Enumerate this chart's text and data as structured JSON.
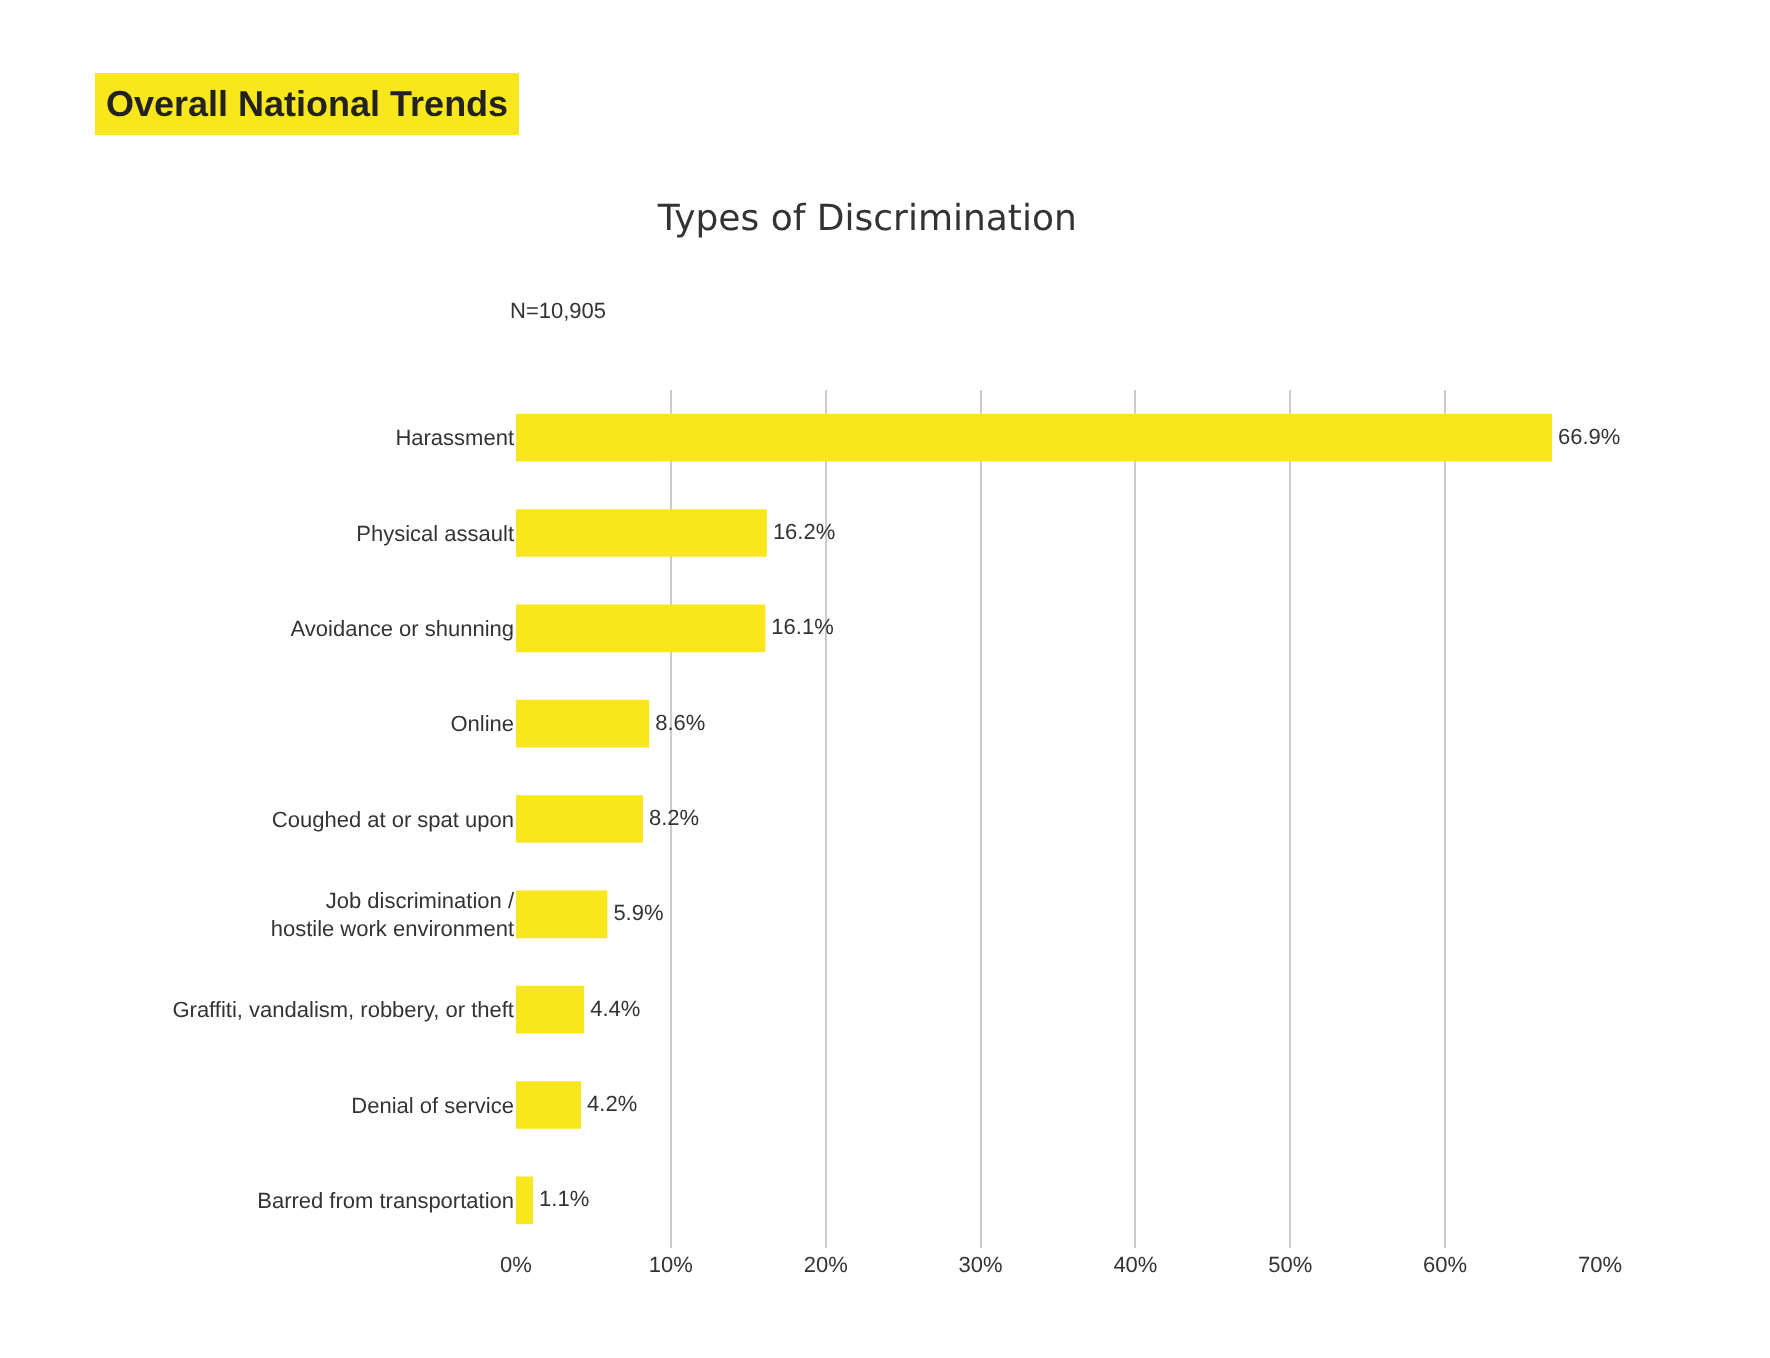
{
  "chart_data": {
    "type": "bar",
    "orientation": "horizontal",
    "title": "Types of Discrimination",
    "subtitle": "N=10,905",
    "annotations": [
      "Overall National Trends"
    ],
    "categories": [
      "Harassment",
      "Physical assault",
      "Avoidance or shunning",
      "Online",
      "Coughed at or spat upon",
      "Job discrimination /\nhostile work environment",
      "Graffiti, vandalism, robbery, or theft",
      "Denial of service",
      "Barred from transportation"
    ],
    "values": [
      66.9,
      16.2,
      16.1,
      8.6,
      8.2,
      5.9,
      4.4,
      4.2,
      1.1
    ],
    "value_labels": [
      "66.9%",
      "16.2%",
      "16.1%",
      "8.6%",
      "8.2%",
      "5.9%",
      "4.4%",
      "4.2%",
      "1.1%"
    ],
    "color": "#f9e71e",
    "xlim": [
      0,
      70
    ],
    "xticks": [
      {
        "value": 0,
        "label": "0%"
      },
      {
        "value": 10,
        "label": "10%"
      },
      {
        "value": 20,
        "label": "20%"
      },
      {
        "value": 30,
        "label": "30%"
      },
      {
        "value": 40,
        "label": "40%"
      },
      {
        "value": 50,
        "label": "50%"
      },
      {
        "value": 60,
        "label": "60%"
      },
      {
        "value": 70,
        "label": "70%"
      }
    ],
    "grid": "x",
    "legend": false
  }
}
